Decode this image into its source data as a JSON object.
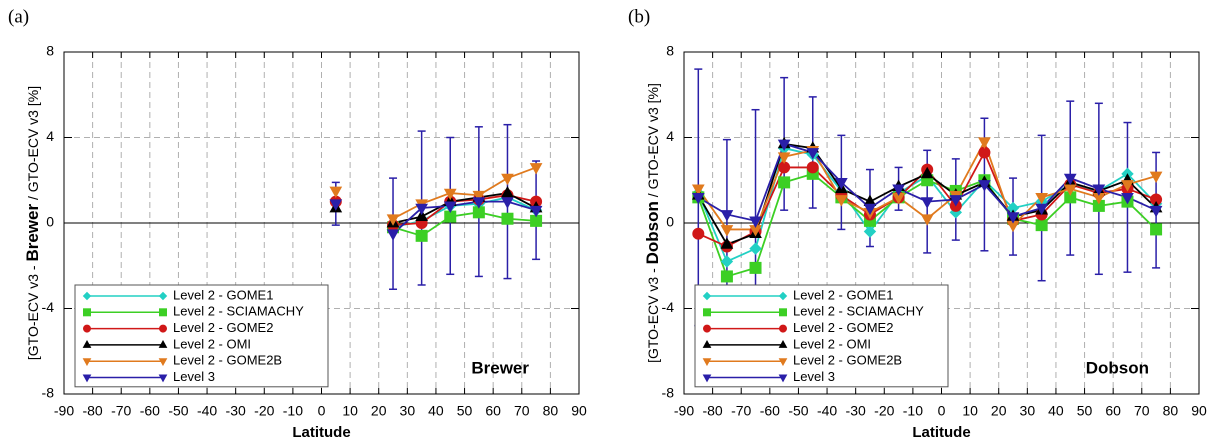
{
  "chart_data": [
    {
      "type": "line",
      "panel_label": "(a)",
      "annotation": "Brewer",
      "y_label": [
        "[GTO-ECV v3 - ",
        "Brewer",
        " / GTO-ECV v3  [%]"
      ],
      "x_label": "Latitude",
      "xlim": [
        -90,
        90
      ],
      "xticks": [
        -90,
        -80,
        -70,
        -60,
        -50,
        -40,
        -30,
        -20,
        -10,
        0,
        10,
        20,
        30,
        40,
        50,
        60,
        70,
        80,
        90
      ],
      "ylim": [
        -8,
        8
      ],
      "yticks": [
        -8,
        -4,
        0,
        4,
        8
      ],
      "grid": true,
      "legend": "lower left",
      "x": [
        5,
        15,
        25,
        35,
        45,
        55,
        65,
        75
      ],
      "series": [
        {
          "name": "Level 2 - GOME1",
          "color": "#22d0c4",
          "marker": "diamond",
          "values": [
            null,
            null,
            -0.2,
            0.1,
            0.8,
            0.9,
            1.2,
            0.6
          ]
        },
        {
          "name": "Level 2 - SCIAMACHY",
          "color": "#3ccf24",
          "marker": "square",
          "values": [
            null,
            null,
            -0.2,
            -0.6,
            0.3,
            0.5,
            0.2,
            0.1
          ]
        },
        {
          "name": "Level 2 - GOME2",
          "color": "#d01818",
          "marker": "circle",
          "values": [
            1.0,
            null,
            -0.1,
            0.0,
            1.0,
            1.1,
            1.3,
            1.0
          ]
        },
        {
          "name": "Level 2 - OMI",
          "color": "#000000",
          "marker": "triangle-up",
          "values": [
            0.7,
            null,
            0.0,
            0.3,
            1.0,
            1.2,
            1.4,
            0.7
          ]
        },
        {
          "name": "Level 2 - GOME2B",
          "color": "#e07a1e",
          "marker": "triangle-down",
          "values": [
            1.5,
            null,
            0.2,
            0.9,
            1.4,
            1.3,
            2.1,
            2.6
          ]
        },
        {
          "name": "Level 3",
          "color": "#2a1fa8",
          "marker": "triangle-down",
          "values": [
            0.9,
            null,
            -0.5,
            0.7,
            0.8,
            1.0,
            1.0,
            0.6
          ],
          "errors": [
            1.0,
            null,
            2.6,
            3.6,
            3.2,
            3.5,
            3.6,
            2.3
          ]
        }
      ]
    },
    {
      "type": "line",
      "panel_label": "(b)",
      "annotation": "Dobson",
      "y_label": [
        "[GTO-ECV v3 - ",
        "Dobson",
        " / GTO-ECV v3  [%]"
      ],
      "x_label": "Latitude",
      "xlim": [
        -90,
        90
      ],
      "xticks": [
        -90,
        -80,
        -70,
        -60,
        -50,
        -40,
        -30,
        -20,
        -10,
        0,
        10,
        20,
        30,
        40,
        50,
        60,
        70,
        80,
        90
      ],
      "ylim": [
        -8,
        8
      ],
      "yticks": [
        -8,
        -4,
        0,
        4,
        8
      ],
      "grid": true,
      "legend": "lower left",
      "x": [
        -85,
        -75,
        -65,
        -55,
        -45,
        -35,
        -25,
        -15,
        -5,
        5,
        15,
        25,
        35,
        45,
        55,
        65,
        75
      ],
      "series": [
        {
          "name": "Level 2 - GOME1",
          "color": "#22d0c4",
          "marker": "diamond",
          "values": [
            1.4,
            -1.8,
            -1.2,
            3.5,
            3.2,
            1.5,
            -0.4,
            1.4,
            2.2,
            0.5,
            2.0,
            0.7,
            1.0,
            1.8,
            1.5,
            2.3,
            0.9
          ]
        },
        {
          "name": "Level 2 - SCIAMACHY",
          "color": "#3ccf24",
          "marker": "square",
          "values": [
            1.2,
            -2.5,
            -2.1,
            1.9,
            2.3,
            1.2,
            0.1,
            1.2,
            2.0,
            1.5,
            2.0,
            0.2,
            -0.1,
            1.2,
            0.8,
            1.0,
            -0.3
          ]
        },
        {
          "name": "Level 2 - GOME2",
          "color": "#d01818",
          "marker": "circle",
          "values": [
            -0.5,
            -1.1,
            -0.4,
            2.6,
            2.6,
            1.3,
            0.4,
            1.2,
            2.5,
            0.8,
            3.3,
            0.1,
            0.4,
            1.8,
            1.4,
            1.6,
            1.1
          ]
        },
        {
          "name": "Level 2 - OMI",
          "color": "#000000",
          "marker": "triangle-up",
          "values": [
            1.3,
            -1.0,
            -0.5,
            3.7,
            3.5,
            1.6,
            1.0,
            1.7,
            2.3,
            1.3,
            1.9,
            0.3,
            0.6,
            1.9,
            1.5,
            2.0,
            0.7
          ]
        },
        {
          "name": "Level 2 - GOME2B",
          "color": "#e07a1e",
          "marker": "triangle-down",
          "values": [
            1.6,
            -0.3,
            -0.3,
            3.1,
            3.4,
            1.1,
            0.5,
            1.2,
            0.2,
            1.3,
            3.8,
            -0.1,
            1.2,
            1.6,
            1.2,
            1.8,
            2.2
          ]
        },
        {
          "name": "Level 3",
          "color": "#2a1fa8",
          "marker": "triangle-down",
          "values": [
            1.2,
            0.4,
            0.1,
            3.7,
            3.3,
            1.9,
            0.7,
            1.6,
            1.0,
            1.1,
            1.8,
            0.3,
            0.7,
            2.1,
            1.6,
            1.2,
            0.6
          ],
          "errors": [
            6.0,
            3.5,
            5.2,
            3.1,
            2.6,
            2.2,
            1.8,
            1.0,
            2.4,
            1.9,
            3.1,
            1.8,
            3.4,
            3.6,
            4.0,
            3.5,
            2.7
          ]
        }
      ]
    }
  ]
}
